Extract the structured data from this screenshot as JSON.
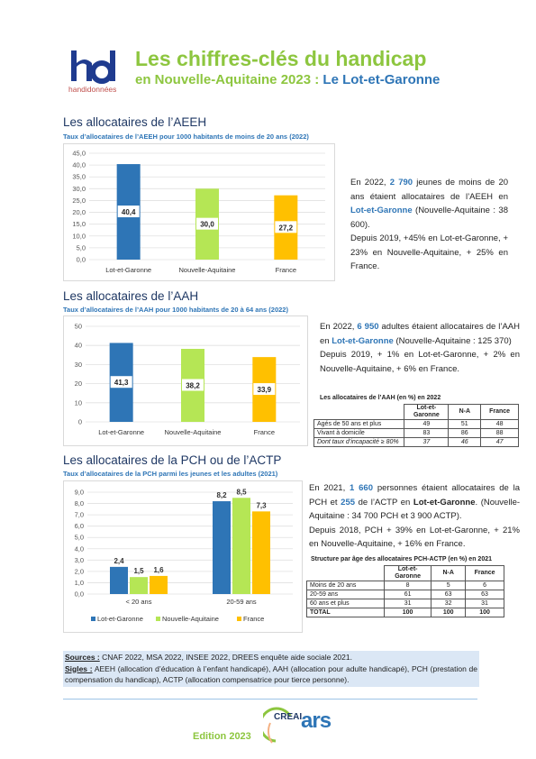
{
  "header": {
    "logo_sub": "handidonnées",
    "title": "Les chiffres-clés du handicap",
    "subtitle_prefix": "en Nouvelle-Aquitaine 2023 :",
    "subtitle_dept": "Le Lot-et-Garonne",
    "colors": {
      "green": "#8dc63f",
      "blue": "#2e75b6"
    }
  },
  "aeeh": {
    "section_title": "Les allocataires de l’AEEH",
    "chart_title": "Taux d’allocataires de l’AEEH pour 1000 habitants de moins de 20 ans (2022)",
    "text": {
      "p1_a": "En 2022,",
      "p1_n": "2 790",
      "p1_b": "jeunes de moins de 20 ans étaient allocataires de l’AEEH en",
      "p1_dept": "Lot-et-Garonne",
      "p1_c": "(Nouvelle-Aquitaine : 38 600).",
      "p2": "Depuis 2019, +45% en Lot-et-Garonne, + 23% en Nouvelle-Aquitaine, + 25% en France."
    }
  },
  "aah": {
    "section_title": "Les allocataires de l’AAH",
    "chart_title": "Taux d’allocataires de l’AAH pour 1000 habitants de 20 à 64 ans (2022)",
    "text": {
      "p1_a": "En 2022,",
      "p1_n": "6 950",
      "p1_b": "adultes étaient allocataires de l’AAH en",
      "p1_dept": "Lot-et-Garonne",
      "p1_c": "(Nouvelle-Aquitaine : 125 370)",
      "p2": "Depuis 2019, + 1% en Lot-et-Garonne, + 2% en Nouvelle-Aquitaine, + 6% en France."
    },
    "table": {
      "caption": "Les allocataires de l’AAH (en %) en 2022",
      "headers": [
        "",
        "Lot-et-Garonne",
        "N-A",
        "France"
      ],
      "rows": [
        [
          "Agés de 50 ans et plus",
          "49",
          "51",
          "48"
        ],
        [
          "Vivant à domicile",
          "83",
          "86",
          "88"
        ],
        [
          "Dont taux d’incapacité ≥ 80%",
          "37",
          "46",
          "47"
        ]
      ]
    }
  },
  "pch": {
    "section_title": "Les allocataires de la PCH ou de l’ACTP",
    "chart_title": "Taux d’allocataires de la PCH parmi les jeunes et les adultes (2021)",
    "text": {
      "p1_a": "En 2021,",
      "p1_n": "1 660",
      "p1_b": "personnes étaient allocataires de la PCH et",
      "p1_n2": "255",
      "p1_c": "de l’ACTP en",
      "p1_dept": "Lot-et-Garonne",
      "p1_d": ". (Nouvelle-Aquitaine : 34 700 PCH et 3 900 ACTP).",
      "p2": "Depuis 2018, PCH + 39% en Lot-et-Garonne, + 21% en Nouvelle-Aquitaine, + 16% en France."
    },
    "table": {
      "caption": "Structure par âge des allocataires PCH-ACTP (en %) en 2021",
      "headers": [
        "",
        "Lot-et-Garonne",
        "N-A",
        "France"
      ],
      "rows": [
        [
          "Moins de 20 ans",
          "8",
          "5",
          "6"
        ],
        [
          "20-59 ans",
          "61",
          "63",
          "63"
        ],
        [
          "60 ans et plus",
          "31",
          "32",
          "31"
        ],
        [
          "TOTAL",
          "100",
          "100",
          "100"
        ]
      ]
    }
  },
  "footer": {
    "sources_label": "Sources :",
    "sources": "CNAF 2022, MSA 2022, INSEE 2022, DREES enquête aide sociale 2021.",
    "sigles_label": "Sigles :",
    "sigles": "AEEH (allocation d’éducation à l’enfant handicapé), AAH (allocation pour adulte handicapé), PCH (prestation de compensation du handicap), ACTP (allocation compensatrice pour tierce personne).",
    "edition": "Edition 2023",
    "logo_creai": "CREAI",
    "logo_ars": "ars"
  },
  "chart_data": [
    {
      "type": "bar",
      "categories": [
        "Lot-et-Garonne",
        "Nouvelle-Aquitaine",
        "France"
      ],
      "values": [
        40.4,
        30.0,
        27.2
      ],
      "value_labels": [
        "40,4",
        "30,0",
        "27,2"
      ],
      "yticks": [
        "0,0",
        "5,0",
        "10,0",
        "15,0",
        "20,0",
        "25,0",
        "30,0",
        "35,0",
        "40,0",
        "45,0"
      ],
      "ylim": [
        0,
        45
      ],
      "colors": [
        "#2e75b6",
        "#b5e655",
        "#ffc000"
      ]
    },
    {
      "type": "bar",
      "categories": [
        "Lot-et-Garonne",
        "Nouvelle-Aquitaine",
        "France"
      ],
      "values": [
        41.3,
        38.2,
        33.9
      ],
      "value_labels": [
        "41,3",
        "38,2",
        "33,9"
      ],
      "yticks": [
        "0",
        "10",
        "20",
        "30",
        "40",
        "50"
      ],
      "ylim": [
        0,
        50
      ],
      "colors": [
        "#2e75b6",
        "#b5e655",
        "#ffc000"
      ]
    },
    {
      "type": "bar",
      "categories": [
        "< 20 ans",
        "20-59 ans"
      ],
      "series": [
        {
          "name": "Lot-et-Garonne",
          "values": [
            2.4,
            8.2
          ],
          "labels": [
            "2,4",
            "8,2"
          ],
          "color": "#2e75b6"
        },
        {
          "name": "Nouvelle-Aquitaine",
          "values": [
            1.5,
            8.5
          ],
          "labels": [
            "1,5",
            "8,5"
          ],
          "color": "#b5e655"
        },
        {
          "name": "France",
          "values": [
            1.6,
            7.3
          ],
          "labels": [
            "1,6",
            "7,3"
          ],
          "color": "#ffc000"
        }
      ],
      "yticks": [
        "0,0",
        "1,0",
        "2,0",
        "3,0",
        "4,0",
        "5,0",
        "6,0",
        "7,0",
        "8,0",
        "9,0"
      ],
      "ylim": [
        0,
        9
      ],
      "legend": "bottom"
    }
  ]
}
